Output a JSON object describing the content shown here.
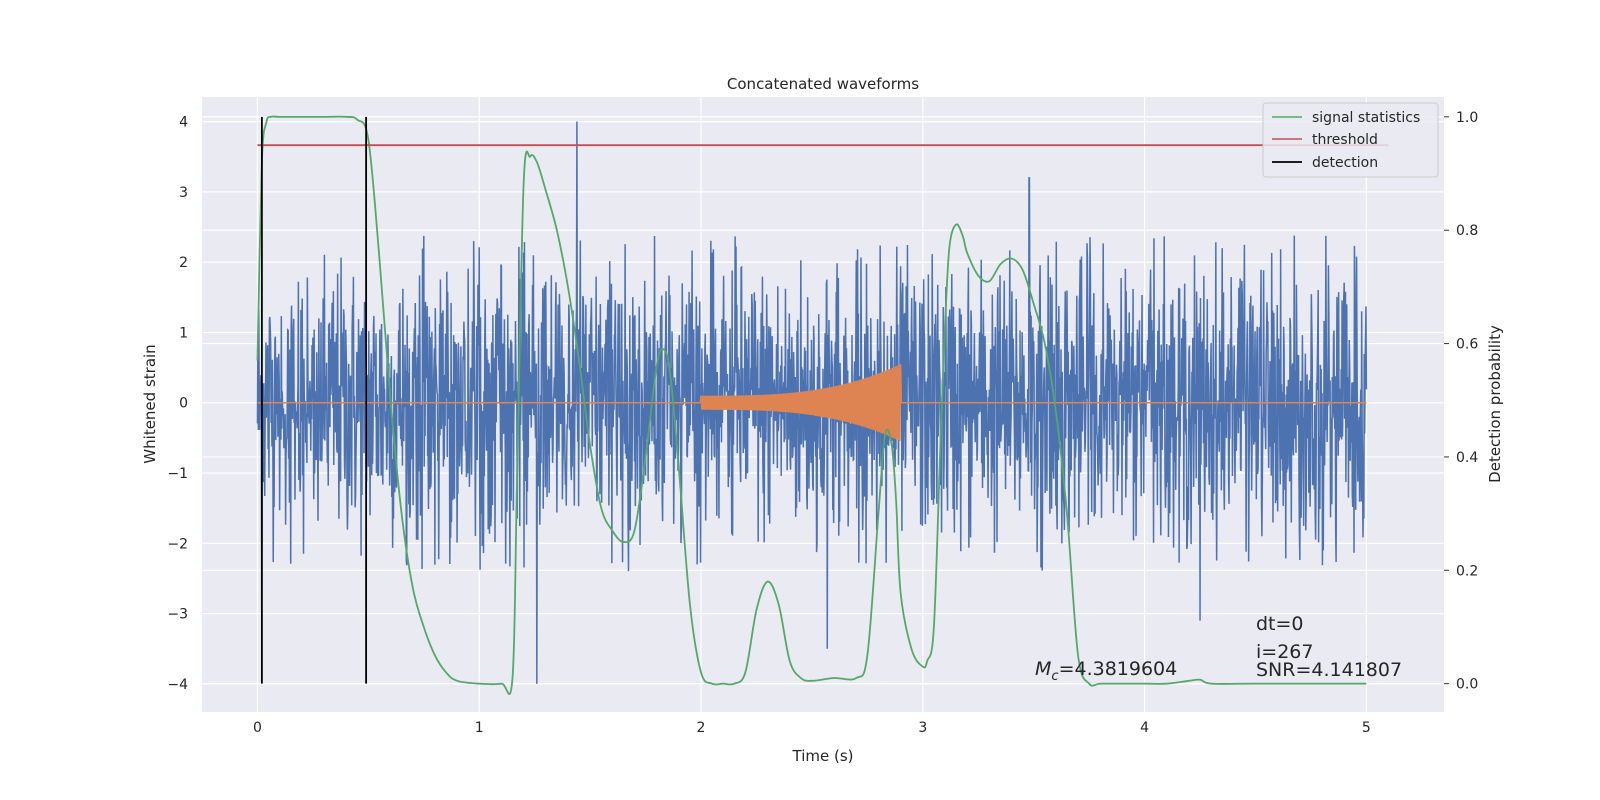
{
  "chart_data": {
    "type": "line",
    "title": "Concatenated waveforms",
    "xlabel": "Time (s)",
    "ylabel": "Whitened strain",
    "y2label": "Detection probability",
    "xlim": [
      -0.25,
      5.35
    ],
    "ylim": [
      -4.4,
      4.35
    ],
    "y2lim": [
      -0.05,
      1.035
    ],
    "x_ticks": [
      0,
      1,
      2,
      3,
      4,
      5
    ],
    "y_ticks": [
      -4,
      -3,
      -2,
      -1,
      0,
      1,
      2,
      3,
      4
    ],
    "y2_ticks": [
      0.0,
      0.2,
      0.4,
      0.6,
      0.8,
      1.0
    ],
    "x_tick_labels": [
      "0",
      "1",
      "2",
      "3",
      "4",
      "5"
    ],
    "y_tick_labels": [
      "−4",
      "−3",
      "−2",
      "−1",
      "0",
      "1",
      "2",
      "3",
      "4"
    ],
    "y2_tick_labels": [
      "0.0",
      "0.2",
      "0.4",
      "0.6",
      "0.8",
      "1.0"
    ],
    "grid": true,
    "legend_position": "top-right",
    "background_color": "#eaeaf2",
    "series": [
      {
        "name": "",
        "axis": "left",
        "kind": "noise",
        "color": "#4c72b0",
        "x_range": [
          0,
          5
        ],
        "typical_amplitude": [
          -2.0,
          2.0
        ],
        "spikes": [
          {
            "x": 0.02,
            "y": -3.0
          },
          {
            "x": 1.26,
            "y": -4.0
          },
          {
            "x": 1.44,
            "y": 4.0
          },
          {
            "x": 2.57,
            "y": -3.5
          },
          {
            "x": 3.48,
            "y": 3.2
          },
          {
            "x": 4.25,
            "y": -3.1
          }
        ]
      },
      {
        "name": "",
        "axis": "left",
        "kind": "chirp",
        "color": "#dd8452",
        "x_range": [
          0,
          5
        ],
        "chirp_start": 2.0,
        "chirp_end": 2.9,
        "amplitude_start": 0.1,
        "amplitude_end": 0.55
      },
      {
        "name": "signal statistics",
        "axis": "right",
        "color": "#55a868",
        "x": [
          0.0,
          0.02,
          0.04,
          0.06,
          0.1,
          0.2,
          0.3,
          0.4,
          0.45,
          0.5,
          0.55,
          0.6,
          0.65,
          0.7,
          0.75,
          0.8,
          0.85,
          0.9,
          1.0,
          1.1,
          1.15,
          1.17,
          1.2,
          1.23,
          1.26,
          1.3,
          1.35,
          1.4,
          1.45,
          1.5,
          1.55,
          1.6,
          1.65,
          1.7,
          1.75,
          1.8,
          1.83,
          1.86,
          1.9,
          1.95,
          2.0,
          2.05,
          2.1,
          2.15,
          2.2,
          2.25,
          2.3,
          2.35,
          2.4,
          2.45,
          2.5,
          2.6,
          2.7,
          2.75,
          2.8,
          2.83,
          2.86,
          2.88,
          2.9,
          2.95,
          3.0,
          3.02,
          3.05,
          3.08,
          3.1,
          3.12,
          3.15,
          3.18,
          3.2,
          3.25,
          3.3,
          3.35,
          3.4,
          3.45,
          3.5,
          3.55,
          3.6,
          3.65,
          3.7,
          3.75,
          3.8,
          3.9,
          4.0,
          4.1,
          4.2,
          4.25,
          4.3,
          4.5,
          5.0
        ],
        "y": [
          0.57,
          0.92,
          0.99,
          1.0,
          1.0,
          1.0,
          1.0,
          1.0,
          0.995,
          0.96,
          0.75,
          0.5,
          0.3,
          0.17,
          0.1,
          0.05,
          0.02,
          0.005,
          0.0,
          0.0,
          0.01,
          0.35,
          0.88,
          0.93,
          0.92,
          0.87,
          0.8,
          0.7,
          0.57,
          0.42,
          0.31,
          0.27,
          0.25,
          0.27,
          0.4,
          0.56,
          0.59,
          0.55,
          0.38,
          0.14,
          0.02,
          0.0,
          0.0,
          0.0,
          0.02,
          0.13,
          0.18,
          0.14,
          0.04,
          0.01,
          0.005,
          0.01,
          0.01,
          0.05,
          0.3,
          0.44,
          0.42,
          0.32,
          0.16,
          0.06,
          0.03,
          0.04,
          0.1,
          0.43,
          0.63,
          0.77,
          0.81,
          0.79,
          0.76,
          0.72,
          0.71,
          0.74,
          0.75,
          0.73,
          0.67,
          0.6,
          0.48,
          0.3,
          0.05,
          0.0,
          0.0,
          0.0,
          0.0,
          0.0,
          0.005,
          0.007,
          0.0,
          0.0,
          0.0
        ]
      },
      {
        "name": "threshold",
        "axis": "right",
        "color": "#c44e52",
        "x": [
          0,
          5.1
        ],
        "y": [
          0.95,
          0.95
        ]
      },
      {
        "name": "detection",
        "axis": "right",
        "color": "#000000",
        "kind": "vertical-lines",
        "x": [
          0.02,
          0.49
        ],
        "y": [
          0.0,
          1.0
        ]
      }
    ],
    "annotations": {
      "mc_symbol": "M",
      "mc_subscript": "c",
      "mc_value": "=4.3819604",
      "dt": "dt=0",
      "i": "i=267",
      "snr": "SNR=4.141807"
    }
  }
}
